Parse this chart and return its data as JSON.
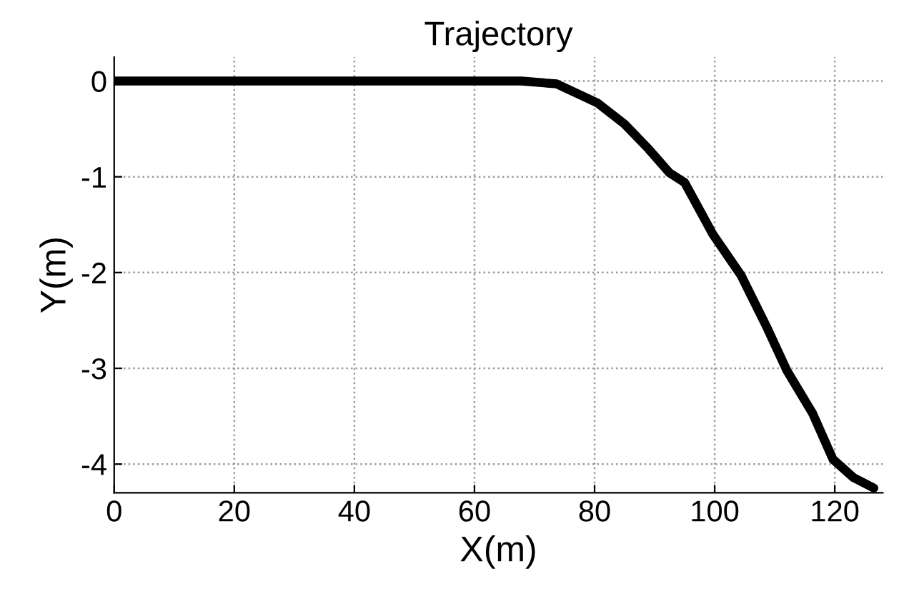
{
  "chart_data": {
    "type": "line",
    "title": "Trajectory",
    "xlabel": "X(m)",
    "ylabel": "Y(m)",
    "series": [
      {
        "color": "#000000",
        "x": [
          0,
          20,
          40,
          60,
          67.8,
          73.7,
          80.5,
          85,
          89,
          92.5,
          95,
          99.7,
          104.4,
          108.6,
          112,
          116.3,
          119.7,
          123.1,
          126.5
        ],
        "values": [
          0,
          0,
          0,
          0,
          0,
          -0.03,
          -0.23,
          -0.45,
          -0.71,
          -0.96,
          -1.06,
          -1.6,
          -2.03,
          -2.56,
          -3.02,
          -3.47,
          -3.95,
          -4.14,
          -4.25
        ]
      }
    ],
    "xlim": [
      0,
      128
    ],
    "ylim": [
      -4.3,
      0.25
    ],
    "xticks": [
      0,
      20,
      40,
      60,
      80,
      100,
      120
    ],
    "yticks": [
      -4,
      -3,
      -2,
      -1,
      0
    ],
    "grid": true,
    "line_style": "solid",
    "marker": "none"
  }
}
